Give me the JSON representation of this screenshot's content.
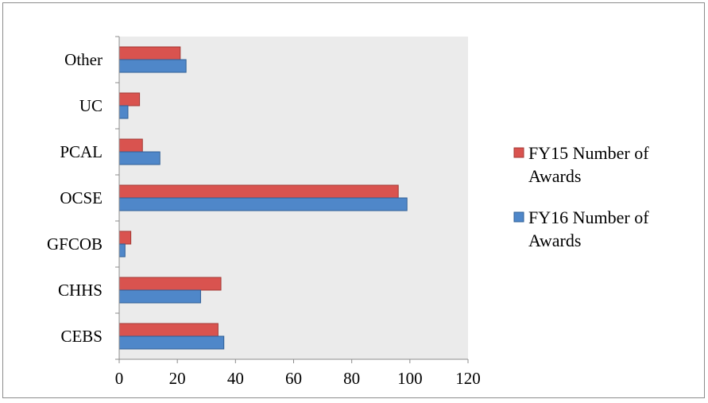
{
  "chart_data": {
    "type": "bar",
    "orientation": "horizontal",
    "categories": [
      "CEBS",
      "CHHS",
      "GFCOB",
      "OCSE",
      "PCAL",
      "UC",
      "Other"
    ],
    "series": [
      {
        "name": "FY15 Number of Awards",
        "legend_lines": [
          "FY15 Number of",
          "Awards"
        ],
        "color": "#d9534f",
        "stroke": "#a33a36",
        "values": [
          34,
          35,
          4,
          96,
          8,
          7,
          21
        ]
      },
      {
        "name": "FY16 Number of Awards",
        "legend_lines": [
          "FY16 Number of",
          "Awards"
        ],
        "color": "#4f87c9",
        "stroke": "#2f5f96",
        "values": [
          36,
          28,
          2,
          99,
          14,
          3,
          23
        ]
      }
    ],
    "xlim": [
      0,
      120
    ],
    "x_ticks": [
      0,
      20,
      40,
      60,
      80,
      100,
      120
    ],
    "grid": false,
    "plot_background": "#ebebeb",
    "legend_position": "right"
  }
}
